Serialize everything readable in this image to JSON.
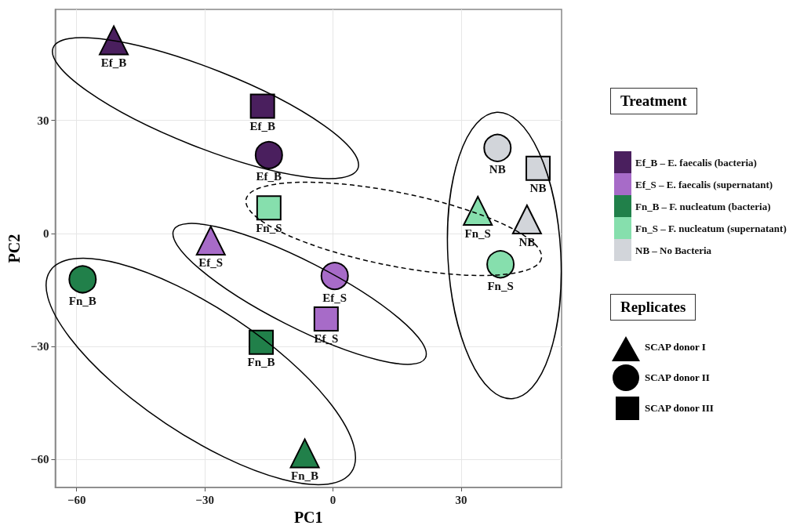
{
  "chart_data": {
    "type": "scatter",
    "xlabel": "PC1",
    "ylabel": "PC2",
    "legend_title": "Treatment",
    "legend": "right",
    "xlim": [
      -65,
      53.5
    ],
    "xticks": [
      -60,
      -30,
      0,
      30
    ],
    "ylim": [
      -67.5,
      59.5
    ],
    "yticks": [
      -60,
      -30,
      0,
      30
    ],
    "grid": true,
    "annotations": [
      "Replicates",
      "SCAP donor I",
      "SCAP donor II",
      "SCAP donor III"
    ],
    "series": [
      {
        "name": "Ef_B – E. faecalis (bacteria)",
        "color": "#4a1f5e",
        "marker": [
          "triangle",
          "circle",
          "square"
        ],
        "x": [
          -51.3,
          -15.0,
          -16.5
        ],
        "values": [
          51.3,
          20.8,
          33.8
        ],
        "value_labels": [
          "Ef_B",
          "Ef_B",
          "Ef_B"
        ]
      },
      {
        "name": "Ef_S – E. faecalis (supernatant)",
        "color": "#a76bc8",
        "marker": [
          "triangle",
          "circle",
          "square"
        ],
        "x": [
          -28.6,
          0.4,
          -1.6
        ],
        "values": [
          -1.9,
          -11.3,
          -22.7
        ],
        "value_labels": [
          "Ef_S",
          "Ef_S",
          "Ef_S"
        ]
      },
      {
        "name": "Fn_B – F. nucleatum (bacteria)",
        "color": "#21804a",
        "marker": [
          "triangle",
          "circle",
          "square"
        ],
        "x": [
          -6.6,
          -58.6,
          -16.8
        ],
        "values": [
          -58.4,
          -12.2,
          -28.9
        ],
        "value_labels": [
          "Fn_B",
          "Fn_B",
          "Fn_B"
        ]
      },
      {
        "name": "Fn_S – F. nucleatum (supernatant)",
        "color": "#86dfad",
        "marker": [
          "triangle",
          "circle",
          "square"
        ],
        "x": [
          33.9,
          39.2,
          -15.0
        ],
        "values": [
          6.0,
          -8.2,
          6.8
        ],
        "value_labels": [
          "Fn_S",
          "Fn_S",
          "Fn_S"
        ]
      },
      {
        "name": "NB – No Bacteria",
        "color": "#d2d5da",
        "marker": [
          "triangle",
          "circle",
          "square"
        ],
        "x": [
          45.4,
          38.5,
          48.0
        ],
        "values": [
          3.7,
          22.7,
          17.3
        ],
        "value_labels": [
          "NB",
          "NB",
          "NB"
        ]
      }
    ]
  }
}
